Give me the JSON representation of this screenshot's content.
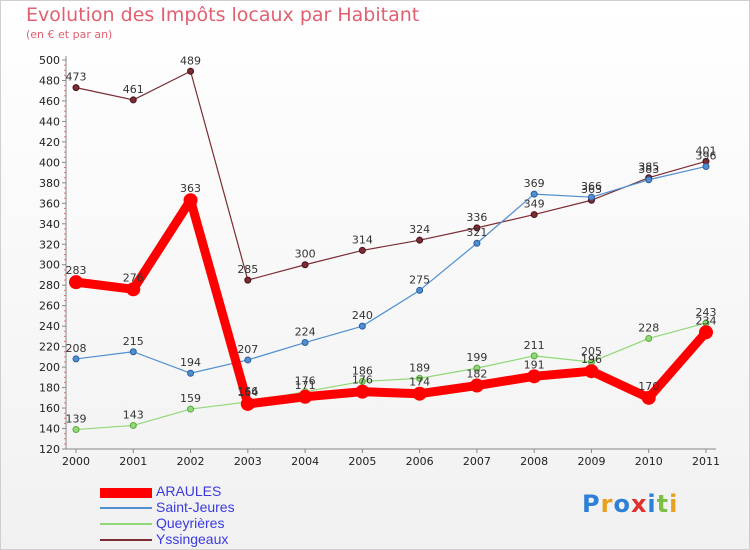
{
  "title": "Evolution des Impôts locaux par Habitant",
  "subtitle": "(en € et par an)",
  "logo": "Proxiti",
  "chart_data": {
    "type": "line",
    "title": "Evolution des Impôts locaux par Habitant",
    "subtitle": "(en € et par an)",
    "xlabel": "",
    "ylabel": "",
    "x": [
      "2000",
      "2001",
      "2002",
      "2003",
      "2004",
      "2005",
      "2006",
      "2007",
      "2008",
      "2009",
      "2010",
      "2011"
    ],
    "ylim": [
      120,
      500
    ],
    "yticks": [
      120,
      140,
      160,
      180,
      200,
      220,
      240,
      260,
      280,
      300,
      320,
      340,
      360,
      380,
      400,
      420,
      440,
      460,
      480,
      500
    ],
    "grid": false,
    "legend_position": "bottom-left",
    "series": [
      {
        "name": "ARAULES",
        "color": "#ff0000",
        "values": [
          283,
          276,
          363,
          164,
          171,
          176,
          174,
          182,
          191,
          196,
          170,
          234
        ]
      },
      {
        "name": "Saint-Jeures",
        "color": "#4f8fd0",
        "values": [
          208,
          215,
          194,
          207,
          224,
          240,
          275,
          321,
          369,
          366,
          383,
          396
        ]
      },
      {
        "name": "Queyrières",
        "color": "#90d878",
        "values": [
          139,
          143,
          159,
          166,
          176,
          186,
          189,
          199,
          211,
          205,
          228,
          243
        ]
      },
      {
        "name": "Yssingeaux",
        "color": "#7b2c34",
        "values": [
          473,
          461,
          489,
          285,
          300,
          314,
          324,
          336,
          349,
          363,
          385,
          401
        ]
      }
    ]
  }
}
